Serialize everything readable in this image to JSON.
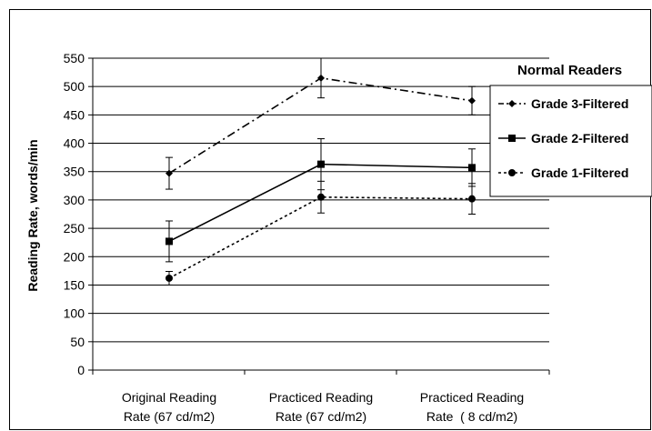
{
  "chart_data": {
    "type": "line",
    "title": "",
    "xlabel": "",
    "ylabel": "Reading Rate, words/min",
    "ylim": [
      0,
      550
    ],
    "yticks": [
      0,
      50,
      100,
      150,
      200,
      250,
      300,
      350,
      400,
      450,
      500,
      550
    ],
    "grid": "horizontal",
    "categories": [
      [
        "Original Reading",
        "Rate (67 cd/m2)"
      ],
      [
        "Practiced Reading",
        "Rate (67 cd/m2)"
      ],
      [
        "Practiced Reading",
        "Rate  ( 8 cd/m2)"
      ]
    ],
    "legend": {
      "title": "Normal Readers",
      "placement": "top-right"
    },
    "series": [
      {
        "name": "Grade 3-Filtered",
        "values": [
          347,
          515,
          475
        ],
        "error": [
          28,
          35,
          25
        ],
        "line_style": "dash-dot",
        "marker": "diamond",
        "color": "#000000"
      },
      {
        "name": "Grade 2-Filtered",
        "values": [
          227,
          363,
          357
        ],
        "error": [
          36,
          45,
          33
        ],
        "line_style": "solid",
        "marker": "square",
        "color": "#000000"
      },
      {
        "name": "Grade 1-Filtered",
        "values": [
          162,
          305,
          302
        ],
        "error": [
          12,
          28,
          27
        ],
        "line_style": "dotted",
        "marker": "circle",
        "color": "#000000"
      }
    ]
  }
}
